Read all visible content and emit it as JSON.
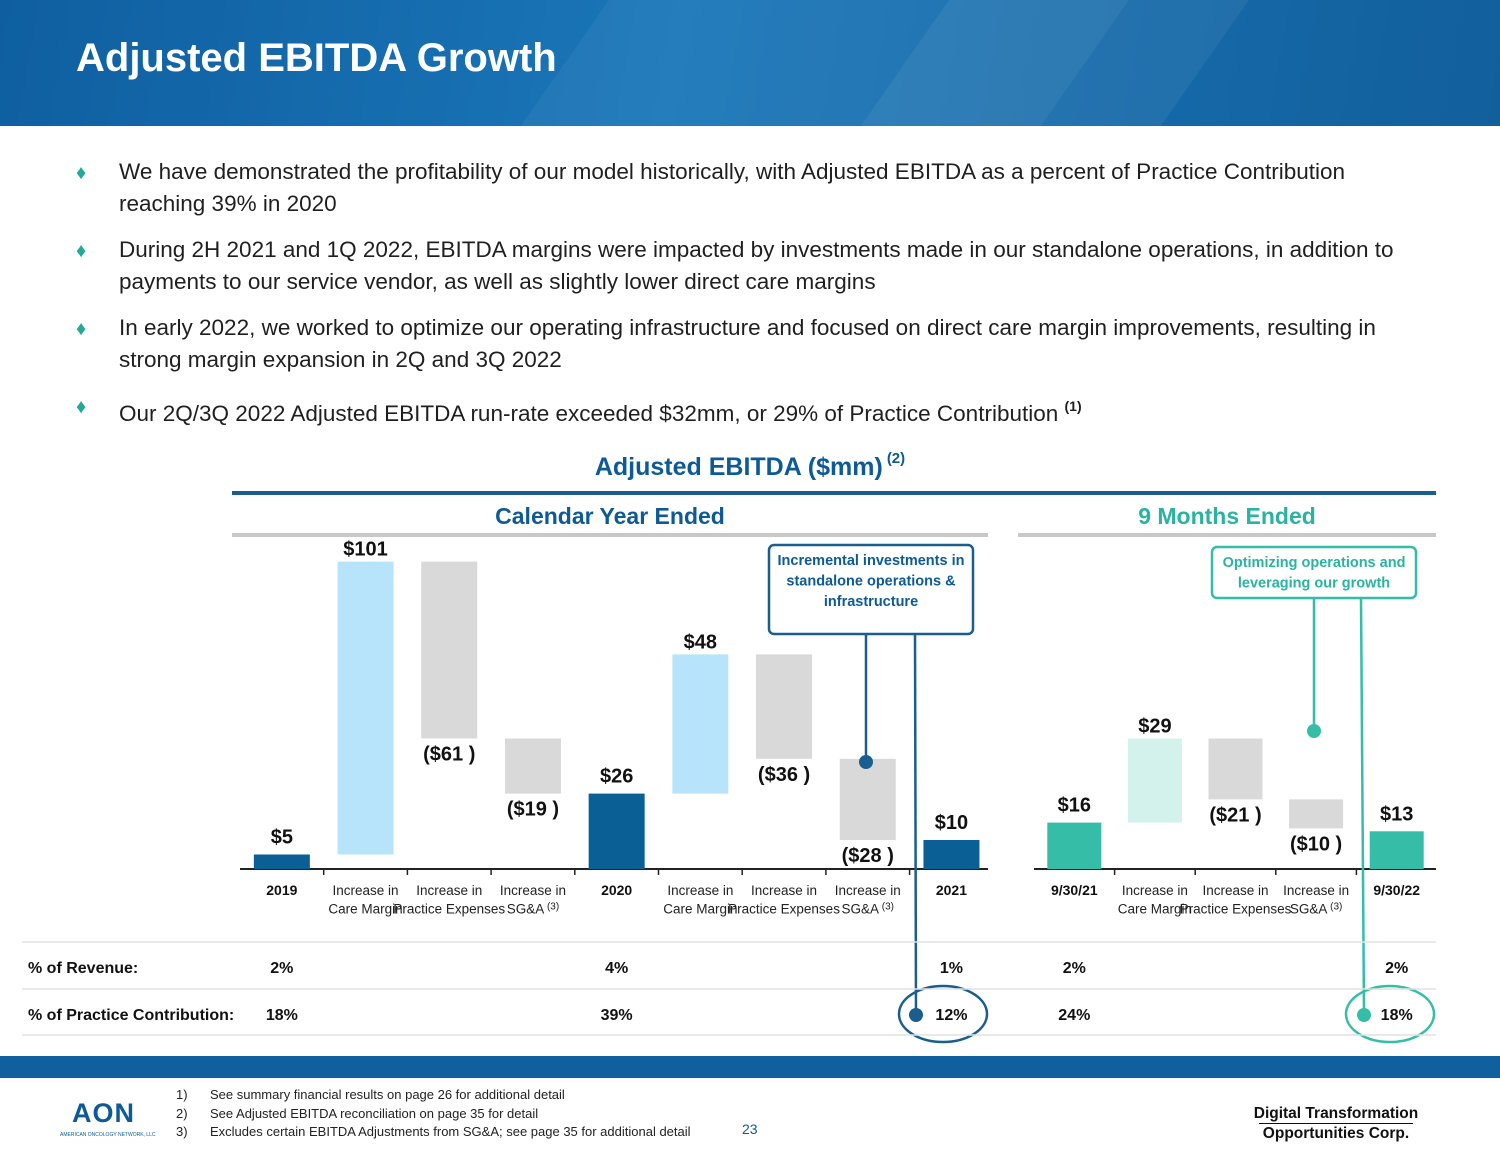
{
  "header": {
    "title": "Adjusted EBITDA Growth"
  },
  "bullets": [
    "We have demonstrated the profitability of our model historically, with Adjusted EBITDA as a percent of Practice Contribution reaching 39% in 2020",
    "During 2H 2021 and 1Q 2022, EBITDA margins were impacted by investments made in our standalone operations, in addition to payments to our service vendor, as well as slightly lower direct care margins",
    "In early 2022, we worked to optimize our operating infrastructure and focused on direct care margin improvements, resulting in strong margin expansion in 2Q and 3Q 2022",
    "Our 2Q/3Q 2022 Adjusted EBITDA run-rate exceeded $32mm, or 29% of Practice Contribution"
  ],
  "bullet4_note": "(1)",
  "colors": {
    "dark_blue": "#0a5f94",
    "light_blue": "#b8e4fb",
    "grey": "#d9d9d9",
    "teal": "#35bda8",
    "light_teal": "#d4f2ec",
    "teal_text": "#2ab3a1",
    "title_blue": "#0d5a96"
  },
  "chart_data": {
    "type": "bar",
    "subtype": "waterfall",
    "title": "Adjusted EBITDA ($mm)",
    "title_note": "(2)",
    "unit": "$mm",
    "sections": [
      {
        "title": "Calendar Year Ended",
        "callout": "Incremental investments in standalone operations & infrastructure",
        "bars": [
          {
            "category": "2019",
            "kind": "total",
            "value": 5,
            "label": "$5"
          },
          {
            "category": "Increase in Care Margin",
            "kind": "increase",
            "value": 101,
            "label": "$101"
          },
          {
            "category": "Increase in Practice Expenses",
            "kind": "decrease",
            "value": -61,
            "label": "($61 )"
          },
          {
            "category": "Increase in SG&A",
            "category_note": "(3)",
            "kind": "decrease",
            "value": -19,
            "label": "($19 )"
          },
          {
            "category": "2020",
            "kind": "total",
            "value": 26,
            "label": "$26"
          },
          {
            "category": "Increase in Care Margin",
            "kind": "increase",
            "value": 48,
            "label": "$48"
          },
          {
            "category": "Increase in Practice Expenses",
            "kind": "decrease",
            "value": -36,
            "label": "($36 )"
          },
          {
            "category": "Increase in SG&A",
            "category_note": "(3)",
            "kind": "decrease",
            "value": -28,
            "label": "($28 )"
          },
          {
            "category": "2021",
            "kind": "total",
            "value": 10,
            "label": "$10"
          }
        ]
      },
      {
        "title": "9 Months Ended",
        "callout": "Optimizing operations and leveraging our growth",
        "bars": [
          {
            "category": "9/30/21",
            "kind": "total",
            "value": 16,
            "label": "$16"
          },
          {
            "category": "Increase in Care Margin",
            "kind": "increase",
            "value": 29,
            "label": "$29"
          },
          {
            "category": "Increase in Practice Expenses",
            "kind": "decrease",
            "value": -21,
            "label": "($21 )"
          },
          {
            "category": "Increase in SG&A",
            "category_note": "(3)",
            "kind": "decrease",
            "value": -10,
            "label": "($10 )"
          },
          {
            "category": "9/30/22",
            "kind": "total",
            "value": 13,
            "label": "$13"
          }
        ]
      }
    ],
    "table": {
      "rows": [
        {
          "label": "% of Revenue:",
          "values": {
            "2019": "2%",
            "2020": "4%",
            "2021": "1%",
            "9/30/21": "2%",
            "9/30/22": "2%"
          }
        },
        {
          "label": "% of Practice Contribution:",
          "values": {
            "2019": "18%",
            "2020": "39%",
            "2021": "12%",
            "9/30/21": "24%",
            "9/30/22": "18%"
          }
        }
      ]
    }
  },
  "footnotes": [
    {
      "num": "1)",
      "text": "See summary financial results on page 26 for additional detail"
    },
    {
      "num": "2)",
      "text": "See Adjusted EBITDA reconciliation on page 35 for detail"
    },
    {
      "num": "3)",
      "text": "Excludes certain EBITDA Adjustments from SG&A; see page 35 for additional detail"
    }
  ],
  "page_number": "23",
  "logos": {
    "left": "AON",
    "left_sub": "AMERICAN ONCOLOGY NETWORK, LLC",
    "right_line1": "Digital Transformation",
    "right_line2": "Opportunities Corp."
  }
}
